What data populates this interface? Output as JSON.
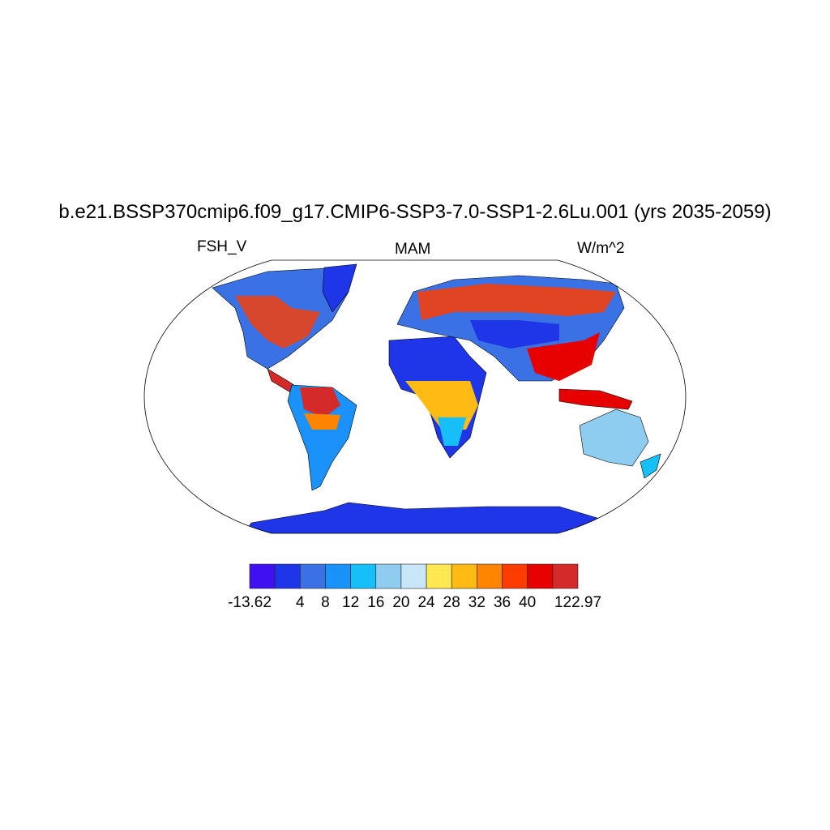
{
  "title": "b.e21.BSSP370cmip6.f09_g17.CMIP6-SSP3-7.0-SSP1-2.6Lu.001 (yrs 2035-2059)",
  "left_string": "FSH_V",
  "center_string": "MAM",
  "right_string": "W/m^2",
  "map": {
    "projection": "Robinson",
    "coastlines": true,
    "ocean": "unfilled"
  },
  "colorbar": {
    "labels": [
      "-13.62",
      "4",
      "8",
      "12",
      "16",
      "20",
      "24",
      "28",
      "32",
      "36",
      "40",
      "122.97"
    ],
    "colors": [
      "#4010f0",
      "#1e35e8",
      "#3a72e6",
      "#1a92fa",
      "#17bff8",
      "#8ecdf0",
      "#c8e6f8",
      "#ffe852",
      "#ffbb14",
      "#ff8400",
      "#ff3c00",
      "#e60000",
      "#d42a2a"
    ]
  }
}
